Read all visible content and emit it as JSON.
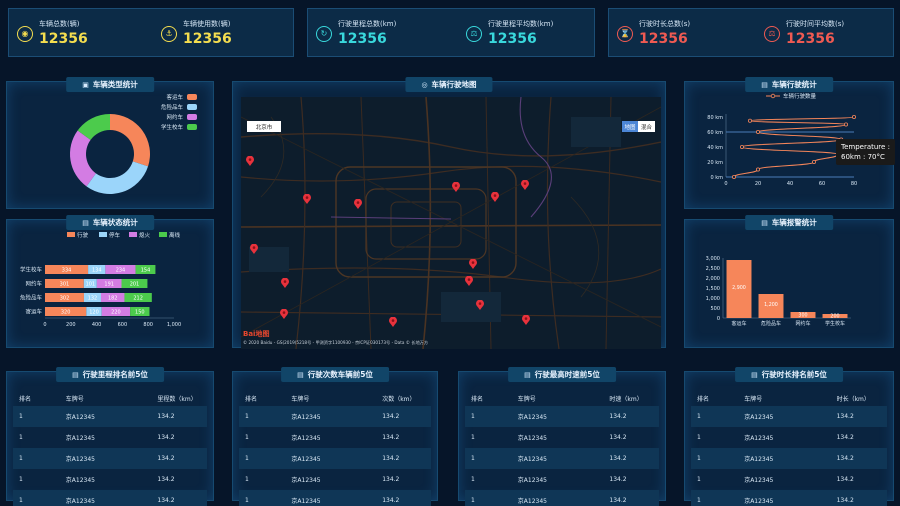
{
  "stats": {
    "group1": [
      {
        "label": "车辆总数(辆)",
        "value": "12356",
        "icon": "car-icon"
      },
      {
        "label": "车辆使用数(辆)",
        "value": "12356",
        "icon": "anchor-icon"
      }
    ],
    "group2": [
      {
        "label": "行驶里程总数(km)",
        "value": "12356",
        "icon": "odometer-icon"
      },
      {
        "label": "行驶里程平均数(km)",
        "value": "12356",
        "icon": "scale-icon"
      }
    ],
    "group3": [
      {
        "label": "行驶时长总数(s)",
        "value": "12356",
        "icon": "hourglass-icon"
      },
      {
        "label": "行驶时间平均数(s)",
        "value": "12356",
        "icon": "balance-icon"
      }
    ]
  },
  "colors": {
    "yellow": "#f4dd4f",
    "cyan": "#39d8dc",
    "red": "#ef5a52",
    "orange": "#f6865a",
    "blue": "#9bd5fa",
    "purple": "#d37ce3",
    "green": "#4ccb4c"
  },
  "vehicle_type": {
    "title": "车辆类型统计",
    "legend": [
      "客运车",
      "危险品车",
      "网约车",
      "学生校车"
    ],
    "chart_data": {
      "type": "pie",
      "categories": [
        "客运车",
        "危险品车",
        "网约车",
        "学生校车"
      ],
      "values": [
        30,
        30,
        25,
        15
      ]
    }
  },
  "vehicle_status": {
    "title": "车辆状态统计",
    "legend": [
      "行驶",
      "停车",
      "熄火",
      "离线"
    ],
    "chart_data": {
      "type": "bar",
      "orientation": "horizontal",
      "stacked": true,
      "categories": [
        "寄运车",
        "危险品车",
        "网约车",
        "学生校车"
      ],
      "series": [
        {
          "name": "行驶",
          "values": [
            320,
            302,
            301,
            334
          ]
        },
        {
          "name": "停车",
          "values": [
            120,
            132,
            101,
            134
          ]
        },
        {
          "name": "熄火",
          "values": [
            220,
            182,
            191,
            234
          ]
        },
        {
          "name": "离线",
          "values": [
            150,
            212,
            201,
            154
          ]
        }
      ],
      "xticks": [
        "0",
        "200",
        "400",
        "600",
        "800",
        "1,000"
      ],
      "xlim": [
        0,
        1000
      ]
    }
  },
  "map": {
    "title": "车辆行驶地图",
    "city_label": "北京市",
    "btn_map": "地图",
    "btn_hybrid": "混合",
    "logo": "Bai地图",
    "copyright": "© 2020 Baidu - GS(2019)5218号 - 甲测资字1100930 - 京ICP证030173号 - Data © 长地万方"
  },
  "trips": {
    "title": "车辆行驶统计",
    "legend": "车辆行驶数量",
    "tooltip_label": "Temperature :",
    "tooltip_value": "60km : 70°C",
    "chart_data": {
      "type": "line",
      "x": [
        5,
        20,
        55,
        70,
        10,
        72,
        20,
        75,
        15,
        80
      ],
      "y": [
        0,
        10,
        20,
        30,
        40,
        50,
        60,
        70,
        75,
        80
      ],
      "xticks": [
        "0",
        "20",
        "40",
        "60",
        "80"
      ],
      "yticks": [
        "0 km",
        "20 km",
        "40 km",
        "60 km",
        "80 km"
      ],
      "xlim": [
        0,
        80
      ],
      "ylim": [
        0,
        80
      ],
      "marker_line_y": 60
    }
  },
  "alarms": {
    "title": "车辆报警统计",
    "chart_data": {
      "type": "bar",
      "categories": [
        "客运车",
        "危险品车",
        "网约车",
        "学生校车"
      ],
      "values": [
        2900,
        1200,
        300,
        200
      ],
      "value_labels": [
        "2,900",
        "1,200",
        "300",
        "200"
      ],
      "yticks": [
        "0",
        "500",
        "1,000",
        "1,500",
        "2,000",
        "2,500",
        "3,000"
      ],
      "ylim": [
        0,
        3000
      ]
    }
  },
  "tables": [
    {
      "title": "行驶里程排名前5位",
      "headers": [
        "排名",
        "车牌号",
        "里程数（km）"
      ],
      "rows": [
        [
          "1",
          "京A12345",
          "134.2"
        ],
        [
          "1",
          "京A12345",
          "134.2"
        ],
        [
          "1",
          "京A12345",
          "134.2"
        ],
        [
          "1",
          "京A12345",
          "134.2"
        ],
        [
          "1",
          "京A12345",
          "134.2"
        ]
      ]
    },
    {
      "title": "行驶次数车辆前5位",
      "headers": [
        "排名",
        "车牌号",
        "次数（km）"
      ],
      "rows": [
        [
          "1",
          "京A12345",
          "134.2"
        ],
        [
          "1",
          "京A12345",
          "134.2"
        ],
        [
          "1",
          "京A12345",
          "134.2"
        ],
        [
          "1",
          "京A12345",
          "134.2"
        ],
        [
          "1",
          "京A12345",
          "134.2"
        ]
      ]
    },
    {
      "title": "行驶最高时速前5位",
      "headers": [
        "排名",
        "车牌号",
        "时速（km）"
      ],
      "rows": [
        [
          "1",
          "京A12345",
          "134.2"
        ],
        [
          "1",
          "京A12345",
          "134.2"
        ],
        [
          "1",
          "京A12345",
          "134.2"
        ],
        [
          "1",
          "京A12345",
          "134.2"
        ],
        [
          "1",
          "京A12345",
          "134.2"
        ]
      ]
    },
    {
      "title": "行驶时长排名前5位",
      "headers": [
        "排名",
        "车牌号",
        "时长（km）"
      ],
      "rows": [
        [
          "1",
          "京A12345",
          "134.2"
        ],
        [
          "1",
          "京A12345",
          "134.2"
        ],
        [
          "1",
          "京A12345",
          "134.2"
        ],
        [
          "1",
          "京A12345",
          "134.2"
        ],
        [
          "1",
          "京A12345",
          "134.2"
        ]
      ]
    }
  ]
}
